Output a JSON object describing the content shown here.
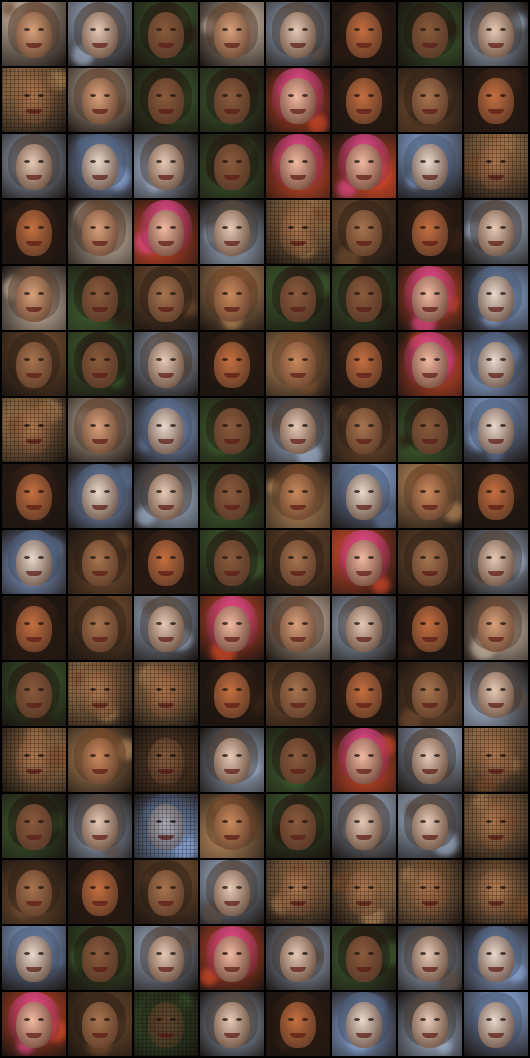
{
  "grid": {
    "columns": 8,
    "rows": 16,
    "palettes": [
      {
        "bg": "#c9b6a4",
        "hair": "#6b4a35",
        "face": "#d9a07a"
      },
      {
        "bg": "#9fb0c9",
        "hair": "#5a4a40",
        "face": "#e6c9b4"
      },
      {
        "bg": "#3c5a2e",
        "hair": "#2a1d14",
        "face": "#8a5a3c"
      },
      {
        "bg": "#2a1a12",
        "hair": "#3a2418",
        "face": "#c46e3f"
      },
      {
        "bg": "#b4875a",
        "hair": "#7a4c2c",
        "face": "#c9895c"
      },
      {
        "bg": "#d24a2a",
        "hair": "#e0488a",
        "face": "#f0b8a0"
      },
      {
        "bg": "#8aa6d6",
        "hair": "#5b6e8e",
        "face": "#e9d8cc"
      },
      {
        "bg": "#6e4a2e",
        "hair": "#3d2a1c",
        "face": "#a8744e"
      }
    ],
    "tile_styles": [
      [
        0,
        1,
        2,
        0,
        1,
        3,
        2,
        1
      ],
      [
        4,
        0,
        2,
        2,
        5,
        3,
        7,
        3
      ],
      [
        1,
        6,
        1,
        2,
        5,
        5,
        6,
        4
      ],
      [
        3,
        0,
        5,
        1,
        4,
        7,
        3,
        1
      ],
      [
        0,
        2,
        7,
        4,
        2,
        2,
        5,
        6
      ],
      [
        7,
        2,
        1,
        3,
        4,
        3,
        5,
        6
      ],
      [
        4,
        0,
        6,
        2,
        1,
        7,
        2,
        6
      ],
      [
        3,
        6,
        1,
        2,
        4,
        6,
        4,
        3
      ],
      [
        6,
        7,
        3,
        2,
        7,
        5,
        7,
        1
      ],
      [
        3,
        7,
        1,
        5,
        0,
        1,
        3,
        0
      ],
      [
        2,
        4,
        4,
        3,
        7,
        3,
        7,
        1
      ],
      [
        4,
        4,
        7,
        1,
        2,
        5,
        1,
        4
      ],
      [
        2,
        1,
        6,
        4,
        2,
        1,
        1,
        4
      ],
      [
        7,
        3,
        7,
        1,
        4,
        4,
        4,
        4
      ],
      [
        6,
        2,
        1,
        5,
        1,
        2,
        1,
        6
      ],
      [
        5,
        7,
        2,
        1,
        3,
        6,
        1,
        6
      ]
    ],
    "mesh_tiles": [
      [
        1,
        0
      ],
      [
        2,
        7
      ],
      [
        3,
        4
      ],
      [
        6,
        0
      ],
      [
        10,
        1
      ],
      [
        10,
        2
      ],
      [
        11,
        0
      ],
      [
        11,
        2
      ],
      [
        11,
        7
      ],
      [
        12,
        2
      ],
      [
        12,
        7
      ],
      [
        13,
        4
      ],
      [
        13,
        5
      ],
      [
        13,
        6
      ],
      [
        13,
        7
      ],
      [
        15,
        2
      ]
    ]
  }
}
